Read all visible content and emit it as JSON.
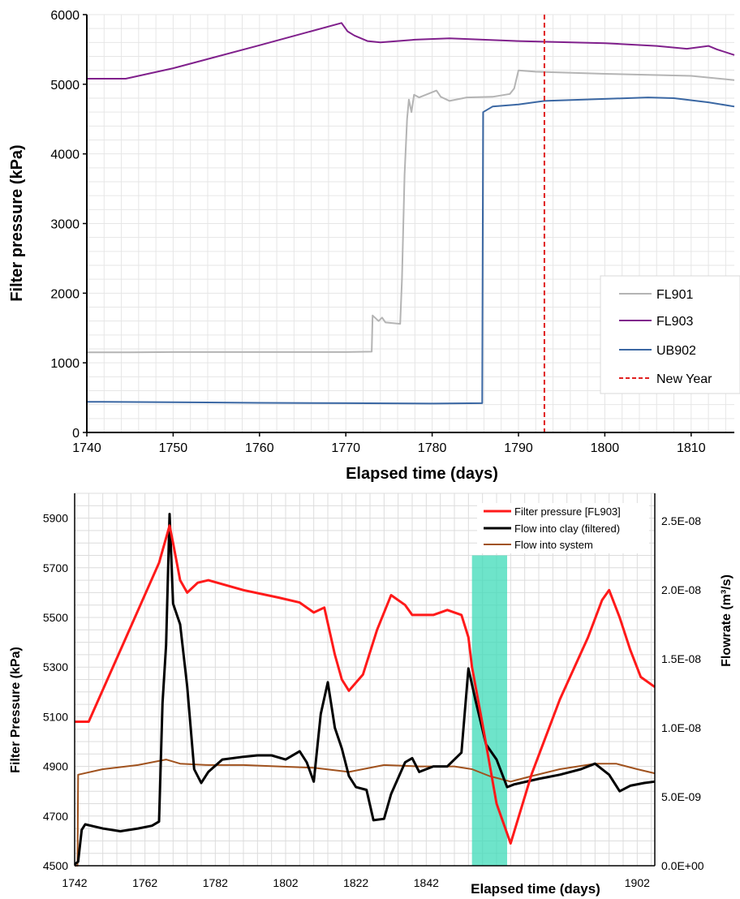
{
  "chart_data": [
    {
      "type": "line",
      "xlabel": "Elapsed time (days)",
      "ylabel": "Filter pressure (kPa)",
      "xlim": [
        1740,
        1815
      ],
      "ylim": [
        0,
        6000
      ],
      "x_ticks": [
        1740,
        1750,
        1760,
        1770,
        1780,
        1790,
        1800,
        1810
      ],
      "y_ticks": [
        0,
        1000,
        2000,
        3000,
        4000,
        5000,
        6000
      ],
      "grid": true,
      "legend_position": "bottom-right",
      "series": [
        {
          "name": "FL901",
          "color": "#b4b4b4",
          "style": "solid",
          "points": [
            [
              1740,
              1150
            ],
            [
              1745,
              1150
            ],
            [
              1750,
              1155
            ],
            [
              1755,
              1155
            ],
            [
              1760,
              1155
            ],
            [
              1765,
              1155
            ],
            [
              1770,
              1155
            ],
            [
              1773,
              1160
            ],
            [
              1773.1,
              1680
            ],
            [
              1773.8,
              1600
            ],
            [
              1774.2,
              1650
            ],
            [
              1774.6,
              1580
            ],
            [
              1776.3,
              1560
            ],
            [
              1776.5,
              2200
            ],
            [
              1776.8,
              3700
            ],
            [
              1777.1,
              4500
            ],
            [
              1777.3,
              4780
            ],
            [
              1777.6,
              4600
            ],
            [
              1777.9,
              4850
            ],
            [
              1778.5,
              4810
            ],
            [
              1779.5,
              4860
            ],
            [
              1780.5,
              4910
            ],
            [
              1781,
              4820
            ],
            [
              1782,
              4760
            ],
            [
              1784,
              4810
            ],
            [
              1787,
              4820
            ],
            [
              1789,
              4860
            ],
            [
              1789.5,
              4940
            ],
            [
              1790,
              5200
            ],
            [
              1792,
              5180
            ],
            [
              1800,
              5150
            ],
            [
              1810,
              5120
            ],
            [
              1815,
              5060
            ]
          ]
        },
        {
          "name": "FL903",
          "color": "#80208c",
          "style": "solid",
          "points": [
            [
              1740,
              5080
            ],
            [
              1744.5,
              5080
            ],
            [
              1750,
              5230
            ],
            [
              1760,
              5560
            ],
            [
              1769.5,
              5880
            ],
            [
              1770.2,
              5760
            ],
            [
              1771,
              5700
            ],
            [
              1772.5,
              5620
            ],
            [
              1774,
              5600
            ],
            [
              1778,
              5640
            ],
            [
              1782,
              5660
            ],
            [
              1790,
              5620
            ],
            [
              1800,
              5590
            ],
            [
              1806,
              5550
            ],
            [
              1809.5,
              5510
            ],
            [
              1812,
              5550
            ],
            [
              1813,
              5500
            ],
            [
              1815,
              5420
            ]
          ]
        },
        {
          "name": "UB902",
          "color": "#3a67a3",
          "style": "solid",
          "points": [
            [
              1740,
              440
            ],
            [
              1750,
              435
            ],
            [
              1760,
              425
            ],
            [
              1770,
              420
            ],
            [
              1780,
              415
            ],
            [
              1785.8,
              420
            ],
            [
              1785.9,
              4600
            ],
            [
              1787,
              4680
            ],
            [
              1790,
              4710
            ],
            [
              1793,
              4760
            ],
            [
              1800,
              4790
            ],
            [
              1805,
              4810
            ],
            [
              1808,
              4800
            ],
            [
              1812,
              4740
            ],
            [
              1815,
              4680
            ]
          ]
        },
        {
          "name": "New Year",
          "color": "#e02020",
          "style": "dashed",
          "x_value": 1793
        }
      ]
    },
    {
      "type": "line",
      "xlabel": "Elapsed time (days)",
      "ylabel_left": "Filter Pressure (kPa)",
      "ylabel_right": "Flowrate (m³/s)",
      "xlim": [
        1742,
        1907
      ],
      "ylim_left": [
        4500,
        6000
      ],
      "ylim_right": [
        0,
        2.7e-08
      ],
      "x_ticks": [
        1742,
        1762,
        1782,
        1802,
        1822,
        1842,
        1902
      ],
      "x_tick_labels": [
        "1742",
        "1762",
        "1782",
        "1802",
        "1822",
        "1842",
        "1902"
      ],
      "y_ticks_left": [
        4500,
        4700,
        4900,
        5100,
        5300,
        5500,
        5700,
        5900
      ],
      "y_ticks_right": [
        0,
        5e-09,
        1e-08,
        1.5e-08,
        2e-08,
        2.5e-08
      ],
      "y_tick_labels_right": [
        "0.0E+00",
        "5.0E-09",
        "1.0E-08",
        "1.5E-08",
        "2.0E-08",
        "2.5E-08"
      ],
      "grid": true,
      "legend_position": "top-right",
      "highlight_band": {
        "x0": 1855,
        "x1": 1865,
        "y_top": 5750,
        "color": "#3ddbb8"
      },
      "series": [
        {
          "name": "Filter pressure [FL903]",
          "axis": "left",
          "color": "#ff1a1a",
          "points": [
            [
              1742,
              5080
            ],
            [
              1746,
              5080
            ],
            [
              1756,
              5400
            ],
            [
              1766,
              5720
            ],
            [
              1769,
              5870
            ],
            [
              1770,
              5800
            ],
            [
              1772,
              5650
            ],
            [
              1774,
              5600
            ],
            [
              1777,
              5640
            ],
            [
              1780,
              5650
            ],
            [
              1790,
              5610
            ],
            [
              1800,
              5580
            ],
            [
              1806,
              5560
            ],
            [
              1810,
              5520
            ],
            [
              1813,
              5540
            ],
            [
              1816,
              5350
            ],
            [
              1818,
              5250
            ],
            [
              1820,
              5205
            ],
            [
              1824,
              5270
            ],
            [
              1828,
              5450
            ],
            [
              1832,
              5590
            ],
            [
              1836,
              5550
            ],
            [
              1838,
              5510
            ],
            [
              1844,
              5510
            ],
            [
              1848,
              5530
            ],
            [
              1852,
              5510
            ],
            [
              1854,
              5420
            ],
            [
              1855,
              5300
            ],
            [
              1858,
              5070
            ],
            [
              1862,
              4750
            ],
            [
              1866,
              4590
            ],
            [
              1872,
              4870
            ],
            [
              1880,
              5170
            ],
            [
              1888,
              5420
            ],
            [
              1892,
              5570
            ],
            [
              1894,
              5610
            ],
            [
              1897,
              5500
            ],
            [
              1900,
              5370
            ],
            [
              1903,
              5260
            ],
            [
              1907,
              5220
            ]
          ]
        },
        {
          "name": "Flow into clay (filtered)",
          "axis": "right",
          "color": "#000000",
          "points": [
            [
              1742,
              1e-10
            ],
            [
              1743,
              3e-10
            ],
            [
              1744,
              2.6e-09
            ],
            [
              1745,
              3e-09
            ],
            [
              1750,
              2.7e-09
            ],
            [
              1755,
              2.5e-09
            ],
            [
              1760,
              2.7e-09
            ],
            [
              1764,
              2.9e-09
            ],
            [
              1766,
              3.2e-09
            ],
            [
              1767,
              1.18e-08
            ],
            [
              1768,
              1.6e-08
            ],
            [
              1769,
              2.55e-08
            ],
            [
              1770,
              1.9e-08
            ],
            [
              1772,
              1.75e-08
            ],
            [
              1774,
              1.3e-08
            ],
            [
              1776,
              7e-09
            ],
            [
              1778,
              6e-09
            ],
            [
              1780,
              6.8e-09
            ],
            [
              1784,
              7.7e-09
            ],
            [
              1790,
              7.9e-09
            ],
            [
              1794,
              8e-09
            ],
            [
              1798,
              8e-09
            ],
            [
              1802,
              7.7e-09
            ],
            [
              1806,
              8.3e-09
            ],
            [
              1808,
              7.5e-09
            ],
            [
              1810,
              6.1e-09
            ],
            [
              1812,
              1.1e-08
            ],
            [
              1814,
              1.33e-08
            ],
            [
              1816,
              1e-08
            ],
            [
              1818,
              8.5e-09
            ],
            [
              1820,
              6.5e-09
            ],
            [
              1822,
              5.7e-09
            ],
            [
              1825,
              5.5e-09
            ],
            [
              1827,
              3.3e-09
            ],
            [
              1830,
              3.4e-09
            ],
            [
              1832,
              5.2e-09
            ],
            [
              1836,
              7.5e-09
            ],
            [
              1838,
              7.8e-09
            ],
            [
              1840,
              6.8e-09
            ],
            [
              1844,
              7.2e-09
            ],
            [
              1848,
              7.2e-09
            ],
            [
              1852,
              8.2e-09
            ],
            [
              1854,
              1.43e-08
            ],
            [
              1856,
              1.2e-08
            ],
            [
              1859,
              8.8e-09
            ],
            [
              1862,
              7.7e-09
            ],
            [
              1865,
              5.7e-09
            ],
            [
              1867,
              5.9e-09
            ],
            [
              1874,
              6.3e-09
            ],
            [
              1880,
              6.6e-09
            ],
            [
              1886,
              7e-09
            ],
            [
              1890,
              7.4e-09
            ],
            [
              1894,
              6.6e-09
            ],
            [
              1897,
              5.4e-09
            ],
            [
              1900,
              5.8e-09
            ],
            [
              1904,
              6e-09
            ],
            [
              1907,
              6.1e-09
            ]
          ]
        },
        {
          "name": "Flow into system",
          "axis": "right",
          "color": "#a0521e",
          "points": [
            [
              1742,
              0
            ],
            [
              1742.8,
              0
            ],
            [
              1743,
              6.6e-09
            ],
            [
              1750,
              7e-09
            ],
            [
              1760,
              7.3e-09
            ],
            [
              1768,
              7.7e-09
            ],
            [
              1772,
              7.4e-09
            ],
            [
              1780,
              7.3e-09
            ],
            [
              1790,
              7.3e-09
            ],
            [
              1800,
              7.2e-09
            ],
            [
              1810,
              7.1e-09
            ],
            [
              1820,
              6.8e-09
            ],
            [
              1830,
              7.3e-09
            ],
            [
              1840,
              7.2e-09
            ],
            [
              1850,
              7.2e-09
            ],
            [
              1855,
              7e-09
            ],
            [
              1860,
              6.5e-09
            ],
            [
              1866,
              6.1e-09
            ],
            [
              1872,
              6.5e-09
            ],
            [
              1880,
              7e-09
            ],
            [
              1890,
              7.4e-09
            ],
            [
              1896,
              7.4e-09
            ],
            [
              1902,
              7e-09
            ],
            [
              1907,
              6.7e-09
            ]
          ]
        }
      ]
    }
  ]
}
